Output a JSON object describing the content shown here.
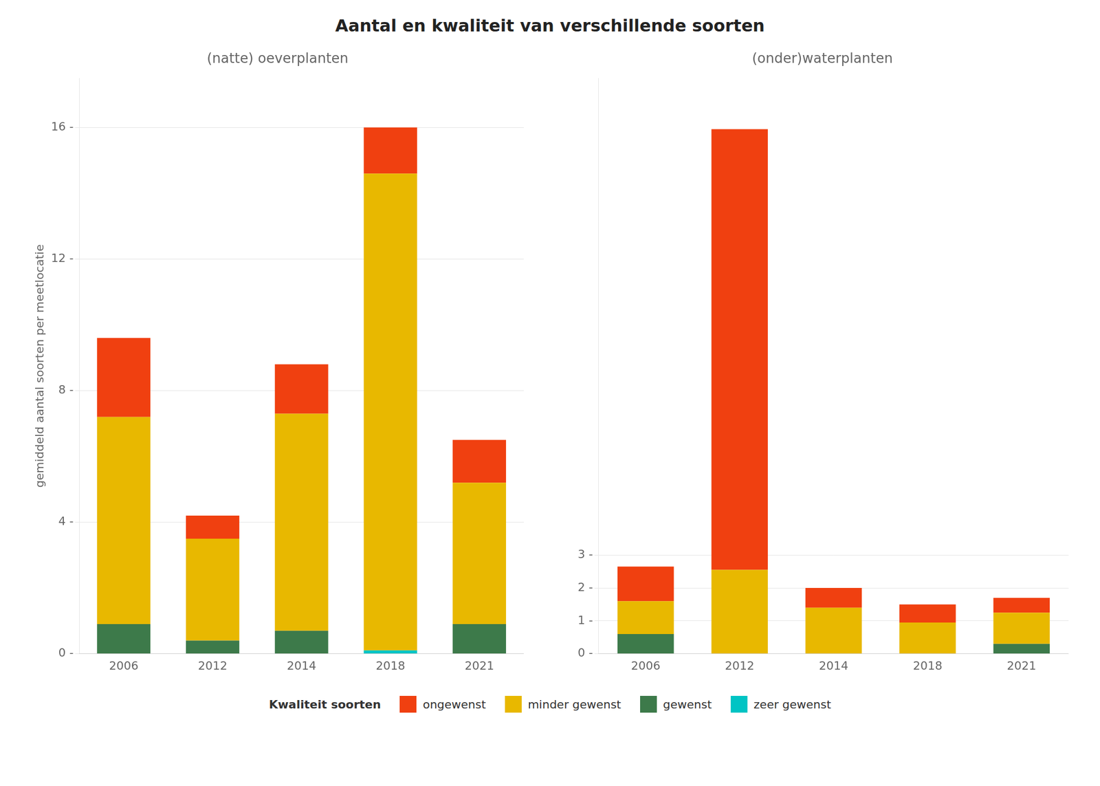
{
  "title": "Aantal en kwaliteit van verschillende soorten",
  "legend_title": "Kwaliteit soorten",
  "legend": "bottom",
  "chart_data": [
    {
      "type": "bar",
      "stacked": true,
      "grid": true,
      "subtitle": "(natte) oeverplanten",
      "ylabel": "gemiddeld aantal soorten per meetlocatie",
      "categories": [
        "2006",
        "2012",
        "2014",
        "2018",
        "2021"
      ],
      "series": [
        {
          "name": "zeer gewenst",
          "color": "#00C4C4",
          "values": [
            0.0,
            0.0,
            0.0,
            0.1,
            0.0
          ]
        },
        {
          "name": "gewenst",
          "color": "#3D7A4A",
          "values": [
            0.9,
            0.4,
            0.7,
            0.0,
            0.9
          ]
        },
        {
          "name": "minder gewenst",
          "color": "#E8B800",
          "values": [
            6.3,
            3.1,
            6.6,
            14.5,
            4.3
          ]
        },
        {
          "name": "ongewenst",
          "color": "#F04010",
          "values": [
            2.4,
            0.7,
            1.5,
            1.4,
            1.3
          ]
        }
      ],
      "ylim": [
        0,
        17.5
      ],
      "yticks": [
        {
          "value": 0,
          "label": "0 -"
        },
        {
          "value": 4,
          "label": "4 -"
        },
        {
          "value": 8,
          "label": "8 -"
        },
        {
          "value": 12,
          "label": "12 -"
        },
        {
          "value": 16,
          "label": "16 -"
        }
      ]
    },
    {
      "type": "bar",
      "stacked": true,
      "grid": true,
      "subtitle": "(onder)waterplanten",
      "categories": [
        "2006",
        "2012",
        "2014",
        "2018",
        "2021"
      ],
      "series": [
        {
          "name": "zeer gewenst",
          "color": "#00C4C4",
          "values": [
            0.0,
            0.0,
            0.0,
            0.0,
            0.0
          ]
        },
        {
          "name": "gewenst",
          "color": "#3D7A4A",
          "values": [
            0.6,
            0.0,
            0.0,
            0.0,
            0.3
          ]
        },
        {
          "name": "minder gewenst",
          "color": "#E8B800",
          "values": [
            1.0,
            2.55,
            1.4,
            0.95,
            0.95
          ]
        },
        {
          "name": "ongewenst",
          "color": "#F04010",
          "values": [
            1.05,
            13.4,
            0.6,
            0.55,
            0.45
          ]
        }
      ],
      "ylim": [
        0,
        17.5
      ],
      "yticks": [
        {
          "value": 0,
          "label": "0 -"
        },
        {
          "value": 1,
          "label": "1 -"
        },
        {
          "value": 2,
          "label": "2 -"
        },
        {
          "value": 3,
          "label": "3 -"
        }
      ]
    }
  ]
}
